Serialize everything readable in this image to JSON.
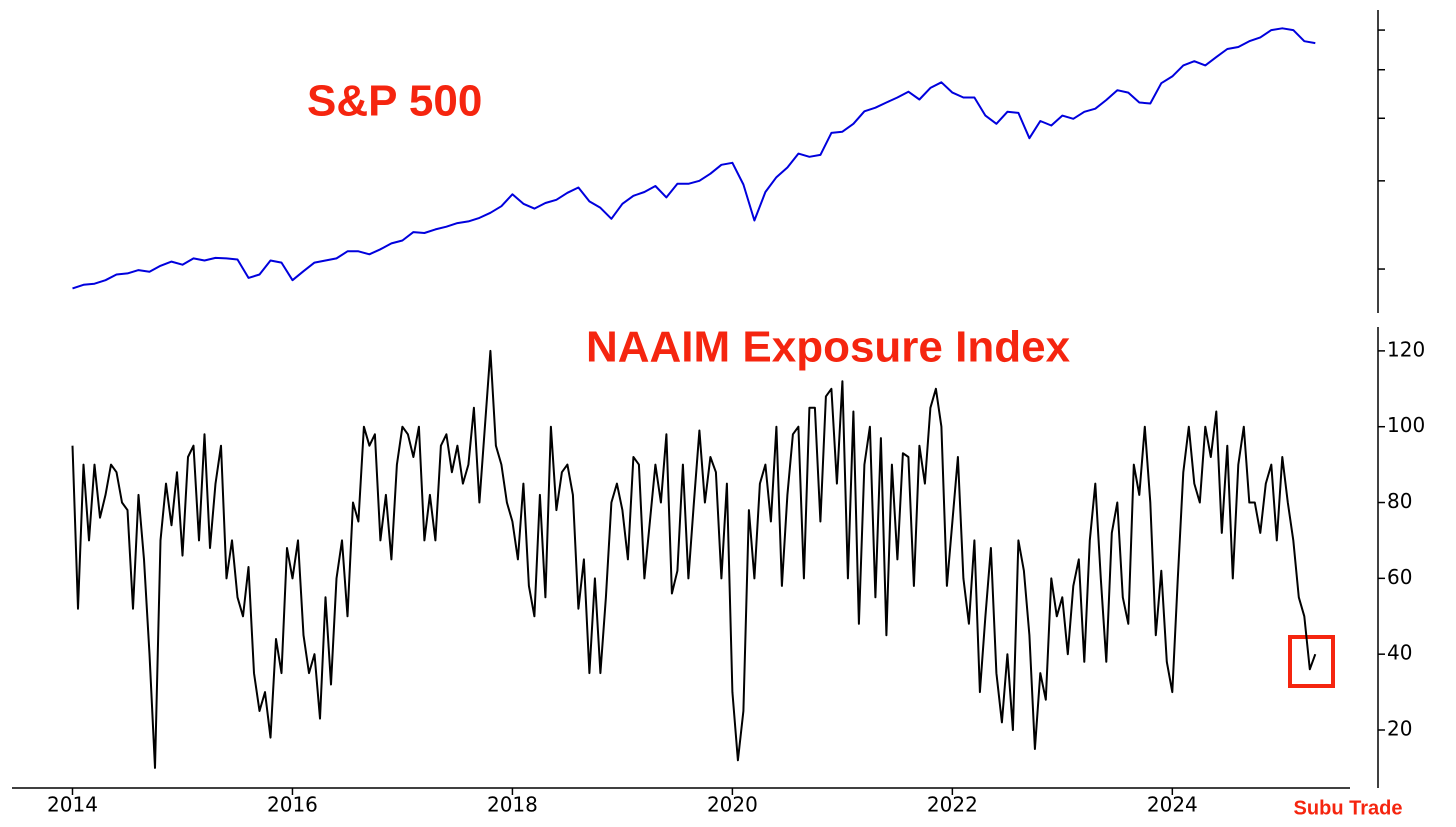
{
  "chart_data": [
    {
      "type": "line",
      "title": "S&P 500",
      "color": "#0000dd",
      "log": true,
      "ytick_labels": false,
      "xlim": [
        2013.45,
        2025.87
      ],
      "ylim": [
        1634,
        6580
      ],
      "yticks": [
        2000,
        3000,
        4000,
        5000,
        6000
      ],
      "x": [
        2014,
        2014.1,
        2014.2,
        2014.3,
        2014.4,
        2014.5,
        2014.6,
        2014.7,
        2014.8,
        2014.9,
        2015,
        2015.1,
        2015.2,
        2015.3,
        2015.4,
        2015.5,
        2015.6,
        2015.7,
        2015.8,
        2015.9,
        2016,
        2016.1,
        2016.2,
        2016.3,
        2016.4,
        2016.5,
        2016.6,
        2016.7,
        2016.8,
        2016.9,
        2017,
        2017.1,
        2017.2,
        2017.3,
        2017.4,
        2017.5,
        2017.6,
        2017.7,
        2017.8,
        2017.9,
        2018,
        2018.1,
        2018.2,
        2018.3,
        2018.4,
        2018.5,
        2018.6,
        2018.7,
        2018.8,
        2018.9,
        2019,
        2019.1,
        2019.2,
        2019.3,
        2019.4,
        2019.5,
        2019.6,
        2019.7,
        2019.8,
        2019.9,
        2020,
        2020.1,
        2020.2,
        2020.3,
        2020.4,
        2020.5,
        2020.6,
        2020.7,
        2020.8,
        2020.9,
        2021,
        2021.1,
        2021.2,
        2021.3,
        2021.4,
        2021.5,
        2021.6,
        2021.7,
        2021.8,
        2021.9,
        2022,
        2022.1,
        2022.2,
        2022.3,
        2022.4,
        2022.5,
        2022.6,
        2022.7,
        2022.8,
        2022.9,
        2023,
        2023.1,
        2023.2,
        2023.3,
        2023.4,
        2023.5,
        2023.6,
        2023.7,
        2023.8,
        2023.9,
        2024,
        2024.1,
        2024.2,
        2024.3,
        2024.4,
        2024.5,
        2024.6,
        2024.7,
        2024.8,
        2024.9,
        2025,
        2025.1,
        2025.2,
        2025.3
      ],
      "values": [
        1830,
        1860,
        1870,
        1900,
        1950,
        1960,
        1990,
        1975,
        2030,
        2070,
        2040,
        2100,
        2080,
        2105,
        2100,
        2090,
        1920,
        1950,
        2080,
        2060,
        1900,
        1980,
        2060,
        2080,
        2100,
        2170,
        2170,
        2140,
        2190,
        2250,
        2280,
        2370,
        2360,
        2400,
        2430,
        2470,
        2490,
        2530,
        2590,
        2670,
        2820,
        2700,
        2640,
        2710,
        2750,
        2840,
        2910,
        2730,
        2650,
        2520,
        2700,
        2800,
        2850,
        2930,
        2780,
        2960,
        2960,
        3000,
        3100,
        3230,
        3260,
        2950,
        2500,
        2850,
        3050,
        3190,
        3400,
        3350,
        3380,
        3740,
        3760,
        3900,
        4130,
        4200,
        4300,
        4400,
        4520,
        4360,
        4600,
        4720,
        4500,
        4400,
        4400,
        4050,
        3900,
        4120,
        4100,
        3650,
        3950,
        3870,
        4050,
        3990,
        4120,
        4180,
        4350,
        4550,
        4500,
        4300,
        4280,
        4700,
        4850,
        5100,
        5200,
        5100,
        5300,
        5500,
        5550,
        5700,
        5800,
        6000,
        6050,
        6000,
        5700,
        5650
      ]
    },
    {
      "type": "line",
      "title": "NAAIM Exposure Index",
      "color": "#000000",
      "log": false,
      "ytick_labels": true,
      "xlim": [
        2013.45,
        2025.87
      ],
      "ylim": [
        4.7,
        126.3
      ],
      "yticks": [
        20,
        40,
        60,
        80,
        100,
        120
      ],
      "xticks": [
        2014,
        2016,
        2018,
        2020,
        2022,
        2024
      ],
      "x": [
        2014,
        2014.05,
        2014.1,
        2014.15,
        2014.2,
        2014.25,
        2014.3,
        2014.35,
        2014.4,
        2014.45,
        2014.5,
        2014.55,
        2014.6,
        2014.65,
        2014.7,
        2014.75,
        2014.8,
        2014.85,
        2014.9,
        2014.95,
        2015,
        2015.05,
        2015.1,
        2015.15,
        2015.2,
        2015.25,
        2015.3,
        2015.35,
        2015.4,
        2015.45,
        2015.5,
        2015.55,
        2015.6,
        2015.65,
        2015.7,
        2015.75,
        2015.8,
        2015.85,
        2015.9,
        2015.95,
        2016,
        2016.05,
        2016.1,
        2016.15,
        2016.2,
        2016.25,
        2016.3,
        2016.35,
        2016.4,
        2016.45,
        2016.5,
        2016.55,
        2016.6,
        2016.65,
        2016.7,
        2016.75,
        2016.8,
        2016.85,
        2016.9,
        2016.95,
        2017,
        2017.05,
        2017.1,
        2017.15,
        2017.2,
        2017.25,
        2017.3,
        2017.35,
        2017.4,
        2017.45,
        2017.5,
        2017.55,
        2017.6,
        2017.65,
        2017.7,
        2017.75,
        2017.8,
        2017.85,
        2017.9,
        2017.95,
        2018,
        2018.05,
        2018.1,
        2018.15,
        2018.2,
        2018.25,
        2018.3,
        2018.35,
        2018.4,
        2018.45,
        2018.5,
        2018.55,
        2018.6,
        2018.65,
        2018.7,
        2018.75,
        2018.8,
        2018.85,
        2018.9,
        2018.95,
        2019,
        2019.05,
        2019.1,
        2019.15,
        2019.2,
        2019.25,
        2019.3,
        2019.35,
        2019.4,
        2019.45,
        2019.5,
        2019.55,
        2019.6,
        2019.65,
        2019.7,
        2019.75,
        2019.8,
        2019.85,
        2019.9,
        2019.95,
        2020,
        2020.05,
        2020.1,
        2020.15,
        2020.2,
        2020.25,
        2020.3,
        2020.35,
        2020.4,
        2020.45,
        2020.5,
        2020.55,
        2020.6,
        2020.65,
        2020.7,
        2020.75,
        2020.8,
        2020.85,
        2020.9,
        2020.95,
        2021,
        2021.05,
        2021.1,
        2021.15,
        2021.2,
        2021.25,
        2021.3,
        2021.35,
        2021.4,
        2021.45,
        2021.5,
        2021.55,
        2021.6,
        2021.65,
        2021.7,
        2021.75,
        2021.8,
        2021.85,
        2021.9,
        2021.95,
        2022,
        2022.05,
        2022.1,
        2022.15,
        2022.2,
        2022.25,
        2022.3,
        2022.35,
        2022.4,
        2022.45,
        2022.5,
        2022.55,
        2022.6,
        2022.65,
        2022.7,
        2022.75,
        2022.8,
        2022.85,
        2022.9,
        2022.95,
        2023,
        2023.05,
        2023.1,
        2023.15,
        2023.2,
        2023.25,
        2023.3,
        2023.35,
        2023.4,
        2023.45,
        2023.5,
        2023.55,
        2023.6,
        2023.65,
        2023.7,
        2023.75,
        2023.8,
        2023.85,
        2023.9,
        2023.95,
        2024,
        2024.05,
        2024.1,
        2024.15,
        2024.2,
        2024.25,
        2024.3,
        2024.35,
        2024.4,
        2024.45,
        2024.5,
        2024.55,
        2024.6,
        2024.65,
        2024.7,
        2024.75,
        2024.8,
        2024.85,
        2024.9,
        2024.95,
        2025,
        2025.05,
        2025.1,
        2025.15,
        2025.2,
        2025.25,
        2025.3
      ],
      "values": [
        95,
        52,
        90,
        70,
        90,
        76,
        82,
        90,
        88,
        80,
        78,
        52,
        82,
        65,
        40,
        10,
        70,
        85,
        74,
        88,
        66,
        92,
        95,
        70,
        98,
        68,
        85,
        95,
        60,
        70,
        55,
        50,
        63,
        35,
        25,
        30,
        18,
        44,
        35,
        68,
        60,
        70,
        45,
        35,
        40,
        23,
        55,
        32,
        60,
        70,
        50,
        80,
        75,
        100,
        95,
        98,
        70,
        82,
        65,
        90,
        100,
        98,
        92,
        100,
        70,
        82,
        70,
        95,
        98,
        88,
        95,
        85,
        90,
        105,
        80,
        100,
        120,
        95,
        90,
        80,
        75,
        65,
        85,
        58,
        50,
        82,
        55,
        100,
        78,
        88,
        90,
        82,
        52,
        65,
        35,
        60,
        35,
        55,
        80,
        85,
        78,
        65,
        92,
        90,
        60,
        75,
        90,
        80,
        98,
        56,
        62,
        90,
        60,
        80,
        99,
        80,
        92,
        88,
        60,
        85,
        30,
        12,
        25,
        78,
        60,
        85,
        90,
        75,
        100,
        58,
        82,
        98,
        100,
        60,
        105,
        105,
        75,
        108,
        110,
        85,
        112,
        60,
        104,
        48,
        90,
        100,
        55,
        97,
        45,
        90,
        65,
        93,
        92,
        58,
        95,
        85,
        105,
        110,
        100,
        58,
        75,
        92,
        60,
        48,
        70,
        30,
        50,
        68,
        35,
        22,
        40,
        20,
        70,
        62,
        45,
        15,
        35,
        28,
        60,
        50,
        55,
        40,
        58,
        65,
        38,
        70,
        85,
        60,
        38,
        72,
        80,
        55,
        48,
        90,
        82,
        100,
        80,
        45,
        62,
        38,
        30,
        60,
        88,
        100,
        85,
        80,
        100,
        92,
        104,
        72,
        95,
        60,
        90,
        100,
        80,
        80,
        72,
        85,
        90,
        70,
        92,
        80,
        70,
        55,
        50,
        36,
        40
      ]
    }
  ],
  "credit": "Subu Trade"
}
